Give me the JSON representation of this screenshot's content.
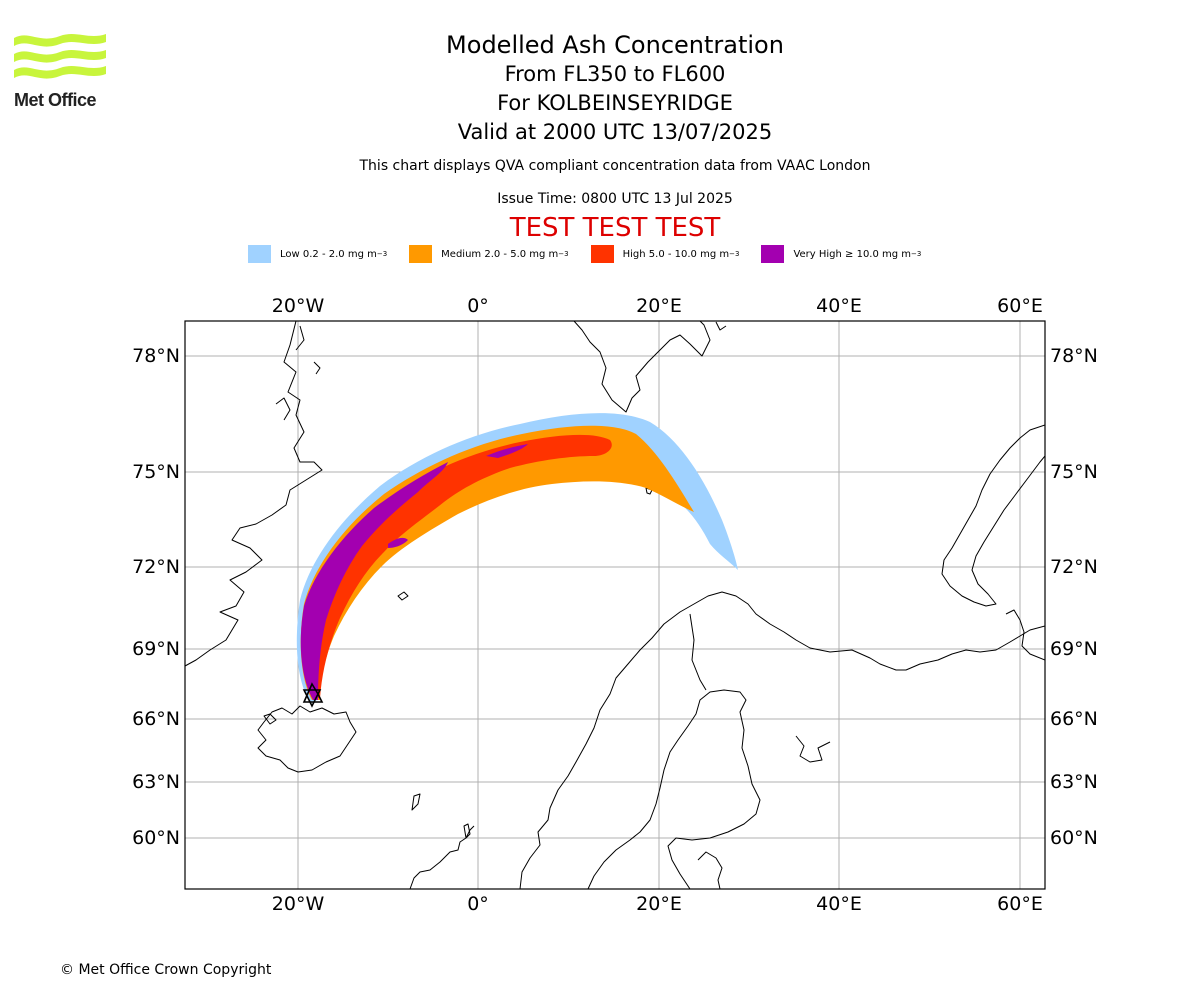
{
  "logo": {
    "text": "Met Office",
    "accent_color": "#c8f53c"
  },
  "titles": {
    "main": "Modelled Ash Concentration",
    "levels": "From FL350 to FL600",
    "location": "For KOLBEINSEYRIDGE",
    "valid": "Valid at 2000 UTC 13/07/2025"
  },
  "notes": {
    "compliance": "This chart displays QVA compliant concentration data from VAAC London",
    "issue": "Issue Time: 0800 UTC 13 Jul 2025"
  },
  "test_banner": {
    "text": "TEST TEST TEST",
    "color": "#dd0000"
  },
  "legend": [
    {
      "label": "Low 0.2 - 2.0 mg m",
      "unit_exp": "−3",
      "color": "#a0d2ff"
    },
    {
      "label": "Medium 2.0 - 5.0 mg m",
      "unit_exp": "−3",
      "color": "#ff9900"
    },
    {
      "label": "High 5.0 - 10.0 mg m",
      "unit_exp": "−3",
      "color": "#ff3300"
    },
    {
      "label": "Very High  ≥  10.0 mg m",
      "unit_exp": "−3",
      "color": "#a300b0"
    }
  ],
  "map": {
    "lon_ticks": [
      "20°W",
      "0°",
      "20°E",
      "40°E",
      "60°E"
    ],
    "lat_ticks": [
      "78°N",
      "75°N",
      "72°N",
      "69°N",
      "66°N",
      "63°N",
      "60°N"
    ],
    "source_marker": "volcano-source-marker"
  },
  "copyright": "© Met Office Crown Copyright"
}
